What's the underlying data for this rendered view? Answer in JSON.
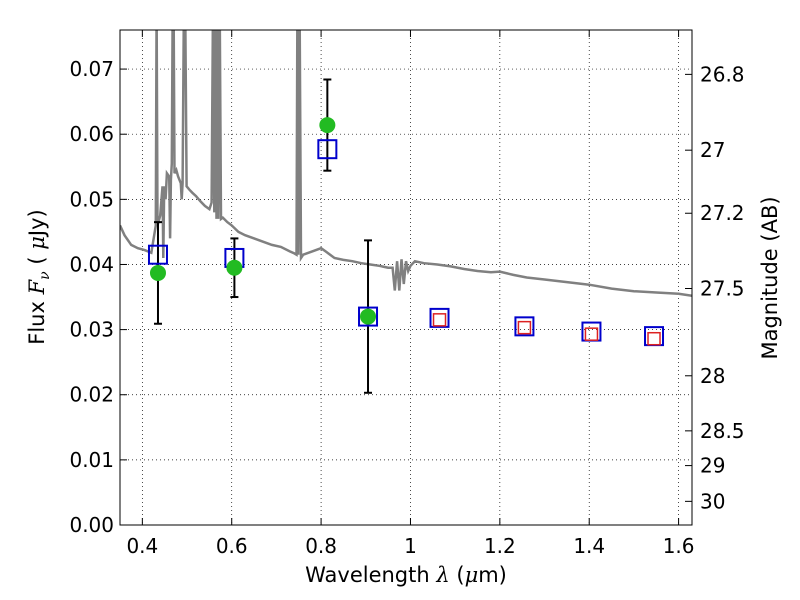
{
  "chart_data": {
    "type": "scatter",
    "xlabel_text": "Wavelength",
    "xlabel_symbol": "λ",
    "xlabel_unit_open": " (",
    "xlabel_unit_mu": "μ",
    "xlabel_unit_close": "m)",
    "ylabel_text": "Flux",
    "ylabel_symbol": "F",
    "ylabel_subscript": "ν",
    "ylabel_unit_open": "(",
    "ylabel_unit_mu": "μ",
    "ylabel_unit_close": "Jy)",
    "y2label": "Magnitude (AB)",
    "xlim": [
      0.35,
      1.63
    ],
    "ylim": [
      0.0,
      0.076
    ],
    "grid": true,
    "x_ticks": [
      {
        "value": 0.4,
        "label": "0.4"
      },
      {
        "value": 0.6,
        "label": "0.6"
      },
      {
        "value": 0.8,
        "label": "0.8"
      },
      {
        "value": 1.0,
        "label": "1"
      },
      {
        "value": 1.2,
        "label": "1.2"
      },
      {
        "value": 1.4,
        "label": "1.4"
      },
      {
        "value": 1.6,
        "label": "1.6"
      }
    ],
    "y_ticks": [
      {
        "value": 0.0,
        "label": "0.00"
      },
      {
        "value": 0.01,
        "label": "0.01"
      },
      {
        "value": 0.02,
        "label": "0.02"
      },
      {
        "value": 0.03,
        "label": "0.03"
      },
      {
        "value": 0.04,
        "label": "0.04"
      },
      {
        "value": 0.05,
        "label": "0.05"
      },
      {
        "value": 0.06,
        "label": "0.06"
      },
      {
        "value": 0.07,
        "label": "0.07"
      }
    ],
    "mag_ticks": [
      {
        "value": 26.8,
        "label": "26.8"
      },
      {
        "value": 27.0,
        "label": "27"
      },
      {
        "value": 27.2,
        "label": "27.2"
      },
      {
        "value": 27.5,
        "label": "27.5"
      },
      {
        "value": 28.0,
        "label": "28"
      },
      {
        "value": 28.5,
        "label": "28.5"
      },
      {
        "value": 29.0,
        "label": "29"
      },
      {
        "value": 30.0,
        "label": "30"
      }
    ],
    "series": [
      {
        "kind": "observed",
        "color": "#22bb22",
        "points": [
          {
            "x": 0.435,
            "y": 0.0387,
            "err": 0.0078
          },
          {
            "x": 0.606,
            "y": 0.0395,
            "err": 0.0045
          },
          {
            "x": 0.814,
            "y": 0.0614,
            "err": 0.007
          },
          {
            "x": 0.905,
            "y": 0.032,
            "err": 0.0117
          }
        ]
      },
      {
        "kind": "model_photometry",
        "color": "#0000cc",
        "points": [
          {
            "x": 0.435,
            "y": 0.0415
          },
          {
            "x": 0.606,
            "y": 0.041
          },
          {
            "x": 0.814,
            "y": 0.0577
          },
          {
            "x": 0.905,
            "y": 0.032
          },
          {
            "x": 1.065,
            "y": 0.0318
          },
          {
            "x": 1.255,
            "y": 0.0305
          },
          {
            "x": 1.405,
            "y": 0.0297
          },
          {
            "x": 1.545,
            "y": 0.029
          }
        ]
      },
      {
        "kind": "predicted",
        "color": "#dd2222",
        "points": [
          {
            "x": 1.065,
            "y": 0.0315
          },
          {
            "x": 1.255,
            "y": 0.0303
          },
          {
            "x": 1.405,
            "y": 0.0293
          },
          {
            "x": 1.545,
            "y": 0.0286
          }
        ]
      }
    ],
    "spectrum": {
      "color": "#808080",
      "points": [
        [
          0.35,
          0.046
        ],
        [
          0.36,
          0.0445
        ],
        [
          0.375,
          0.043
        ],
        [
          0.39,
          0.0425
        ],
        [
          0.405,
          0.0422
        ],
        [
          0.42,
          0.0418
        ],
        [
          0.43,
          0.046
        ],
        [
          0.432,
          0.08
        ],
        [
          0.434,
          0.046
        ],
        [
          0.44,
          0.0475
        ],
        [
          0.445,
          0.052
        ],
        [
          0.447,
          0.041
        ],
        [
          0.449,
          0.052
        ],
        [
          0.452,
          0.05
        ],
        [
          0.455,
          0.054
        ],
        [
          0.46,
          0.0535
        ],
        [
          0.462,
          0.044
        ],
        [
          0.464,
          0.053
        ],
        [
          0.466,
          0.0555
        ],
        [
          0.468,
          0.08
        ],
        [
          0.47,
          0.08
        ],
        [
          0.472,
          0.054
        ],
        [
          0.476,
          0.0545
        ],
        [
          0.48,
          0.0535
        ],
        [
          0.486,
          0.0525
        ],
        [
          0.488,
          0.05
        ],
        [
          0.49,
          0.0525
        ],
        [
          0.493,
          0.08
        ],
        [
          0.496,
          0.08
        ],
        [
          0.499,
          0.052
        ],
        [
          0.505,
          0.0515
        ],
        [
          0.512,
          0.051
        ],
        [
          0.52,
          0.0505
        ],
        [
          0.53,
          0.0497
        ],
        [
          0.54,
          0.049
        ],
        [
          0.55,
          0.0485
        ],
        [
          0.555,
          0.0495
        ],
        [
          0.558,
          0.08
        ],
        [
          0.561,
          0.048
        ],
        [
          0.563,
          0.08
        ],
        [
          0.566,
          0.047
        ],
        [
          0.568,
          0.08
        ],
        [
          0.57,
          0.047
        ],
        [
          0.573,
          0.08
        ],
        [
          0.576,
          0.047
        ],
        [
          0.58,
          0.0472
        ],
        [
          0.59,
          0.0465
        ],
        [
          0.6,
          0.046
        ],
        [
          0.615,
          0.045
        ],
        [
          0.63,
          0.0445
        ],
        [
          0.65,
          0.044
        ],
        [
          0.67,
          0.0435
        ],
        [
          0.69,
          0.043
        ],
        [
          0.71,
          0.0427
        ],
        [
          0.73,
          0.042
        ],
        [
          0.74,
          0.0417
        ],
        [
          0.745,
          0.0415
        ],
        [
          0.747,
          0.08
        ],
        [
          0.749,
          0.0415
        ],
        [
          0.752,
          0.08
        ],
        [
          0.755,
          0.041
        ],
        [
          0.76,
          0.0415
        ],
        [
          0.78,
          0.042
        ],
        [
          0.8,
          0.0425
        ],
        [
          0.81,
          0.042
        ],
        [
          0.83,
          0.041
        ],
        [
          0.85,
          0.0407
        ],
        [
          0.87,
          0.0405
        ],
        [
          0.89,
          0.0402
        ],
        [
          0.91,
          0.04
        ],
        [
          0.93,
          0.0398
        ],
        [
          0.95,
          0.0395
        ],
        [
          0.96,
          0.0395
        ],
        [
          0.965,
          0.036
        ],
        [
          0.97,
          0.0405
        ],
        [
          0.975,
          0.036
        ],
        [
          0.98,
          0.0408
        ],
        [
          0.985,
          0.037
        ],
        [
          0.99,
          0.0405
        ],
        [
          0.995,
          0.039
        ],
        [
          1.0,
          0.0398
        ],
        [
          1.01,
          0.0405
        ],
        [
          1.03,
          0.0402
        ],
        [
          1.06,
          0.04
        ],
        [
          1.09,
          0.0397
        ],
        [
          1.12,
          0.0393
        ],
        [
          1.15,
          0.039
        ],
        [
          1.18,
          0.0388
        ],
        [
          1.2,
          0.0389
        ],
        [
          1.23,
          0.0384
        ],
        [
          1.26,
          0.038
        ],
        [
          1.3,
          0.0377
        ],
        [
          1.35,
          0.0373
        ],
        [
          1.4,
          0.0369
        ],
        [
          1.45,
          0.0363
        ],
        [
          1.5,
          0.0359
        ],
        [
          1.55,
          0.0357
        ],
        [
          1.6,
          0.0355
        ],
        [
          1.63,
          0.0352
        ]
      ]
    }
  }
}
